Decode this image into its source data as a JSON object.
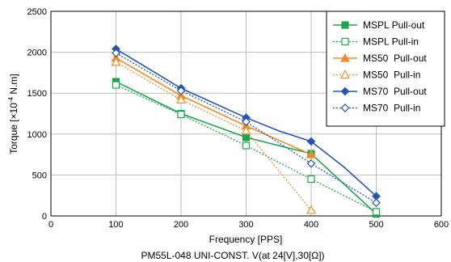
{
  "chart_data": {
    "type": "line",
    "xlabel": "Frequency [PPS]",
    "ylabel_parts": {
      "base": "Torque [×10",
      "exp": "-4",
      "unit": " N.m]"
    },
    "caption": "PM55L-048 UNI-CONST. V(at 24[V],30[Ω])",
    "xlim": [
      0,
      600
    ],
    "ylim": [
      0,
      2500
    ],
    "xticks": [
      0,
      100,
      200,
      300,
      400,
      500,
      600
    ],
    "yticks": [
      0,
      500,
      1000,
      1500,
      2000,
      2500
    ],
    "grid": true,
    "legend_position": "top-right",
    "series": [
      {
        "name": "MSPL Pull-out",
        "color": "#1aa64a",
        "dash": "solid",
        "marker": "square",
        "filled": true,
        "points": [
          [
            100,
            1640
          ],
          [
            200,
            1250
          ],
          [
            300,
            960
          ],
          [
            400,
            760
          ],
          [
            500,
            25
          ]
        ]
      },
      {
        "name": "MSPL Pull-in",
        "color": "#1aa64a",
        "dash": "dotted",
        "marker": "square",
        "filled": false,
        "points": [
          [
            100,
            1600
          ],
          [
            200,
            1240
          ],
          [
            300,
            860
          ],
          [
            400,
            450
          ],
          [
            500,
            50
          ]
        ]
      },
      {
        "name": "MS50  Pull-out",
        "color": "#f28c28",
        "dash": "solid",
        "marker": "triangle",
        "filled": true,
        "points": [
          [
            100,
            1930
          ],
          [
            200,
            1470
          ],
          [
            300,
            1100
          ],
          [
            400,
            750
          ]
        ]
      },
      {
        "name": "MS50  Pull-in",
        "color": "#f28c28",
        "dash": "dotted",
        "marker": "triangle",
        "filled": false,
        "points": [
          [
            100,
            1880
          ],
          [
            200,
            1420
          ],
          [
            300,
            1040
          ],
          [
            400,
            70
          ]
        ]
      },
      {
        "name": "MS70  Pull-out",
        "color": "#2554b8",
        "dash": "solid",
        "marker": "diamond",
        "filled": true,
        "points": [
          [
            100,
            2040
          ],
          [
            200,
            1560
          ],
          [
            300,
            1200
          ],
          [
            350,
            1040
          ],
          [
            400,
            910
          ],
          [
            450,
            600
          ],
          [
            500,
            240
          ]
        ]
      },
      {
        "name": "MS70  Pull-in",
        "color": "#2554b8",
        "dash": "dotted",
        "marker": "diamond",
        "filled": false,
        "points": [
          [
            100,
            1990
          ],
          [
            200,
            1530
          ],
          [
            300,
            1150
          ],
          [
            400,
            640
          ],
          [
            500,
            160
          ]
        ]
      }
    ]
  }
}
